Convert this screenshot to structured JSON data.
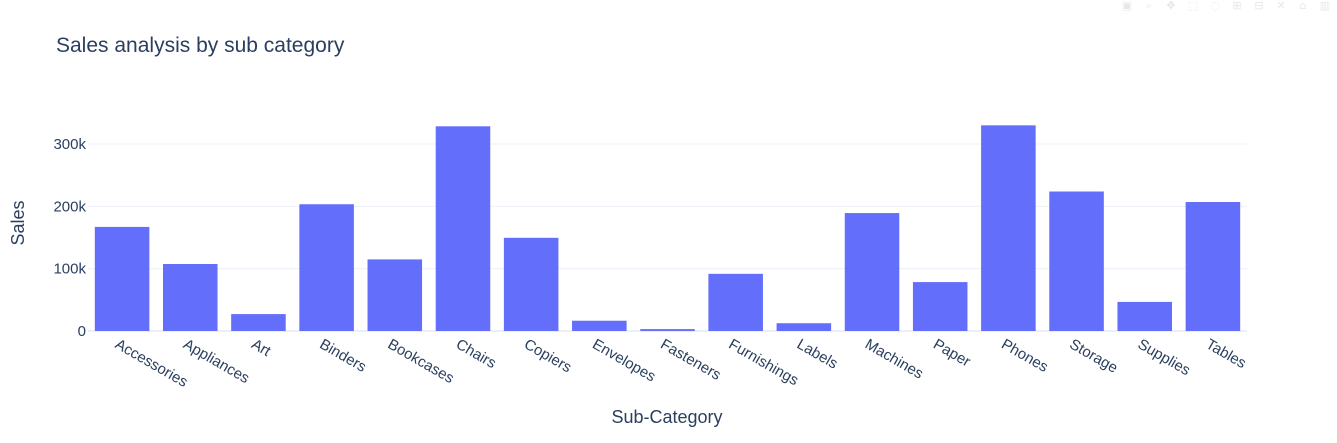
{
  "chart_data": {
    "type": "bar",
    "title": "Sales analysis by sub category",
    "xlabel": "Sub-Category",
    "ylabel": "Sales",
    "categories": [
      "Accessories",
      "Appliances",
      "Art",
      "Binders",
      "Bookcases",
      "Chairs",
      "Copiers",
      "Envelopes",
      "Fasteners",
      "Furnishings",
      "Labels",
      "Machines",
      "Paper",
      "Phones",
      "Storage",
      "Supplies",
      "Tables"
    ],
    "values": [
      167026,
      107532,
      27119,
      203413,
      114880,
      328449,
      149528,
      16476,
      3024,
      91705,
      12486,
      189239,
      78479,
      330007,
      223844,
      46674,
      206966
    ],
    "ylim": [
      0,
      345000
    ],
    "yticks": [
      0,
      100000,
      200000,
      300000
    ],
    "ytick_labels": [
      "0",
      "100k",
      "200k",
      "300k"
    ],
    "bar_color": "#636efa",
    "grid": true
  },
  "modebar": {
    "icons": [
      "camera-icon",
      "zoom-icon",
      "pan-icon",
      "select-icon",
      "lasso-icon",
      "zoom-in-icon",
      "zoom-out-icon",
      "autoscale-icon",
      "reset-icon",
      "plotly-logo-icon"
    ]
  }
}
